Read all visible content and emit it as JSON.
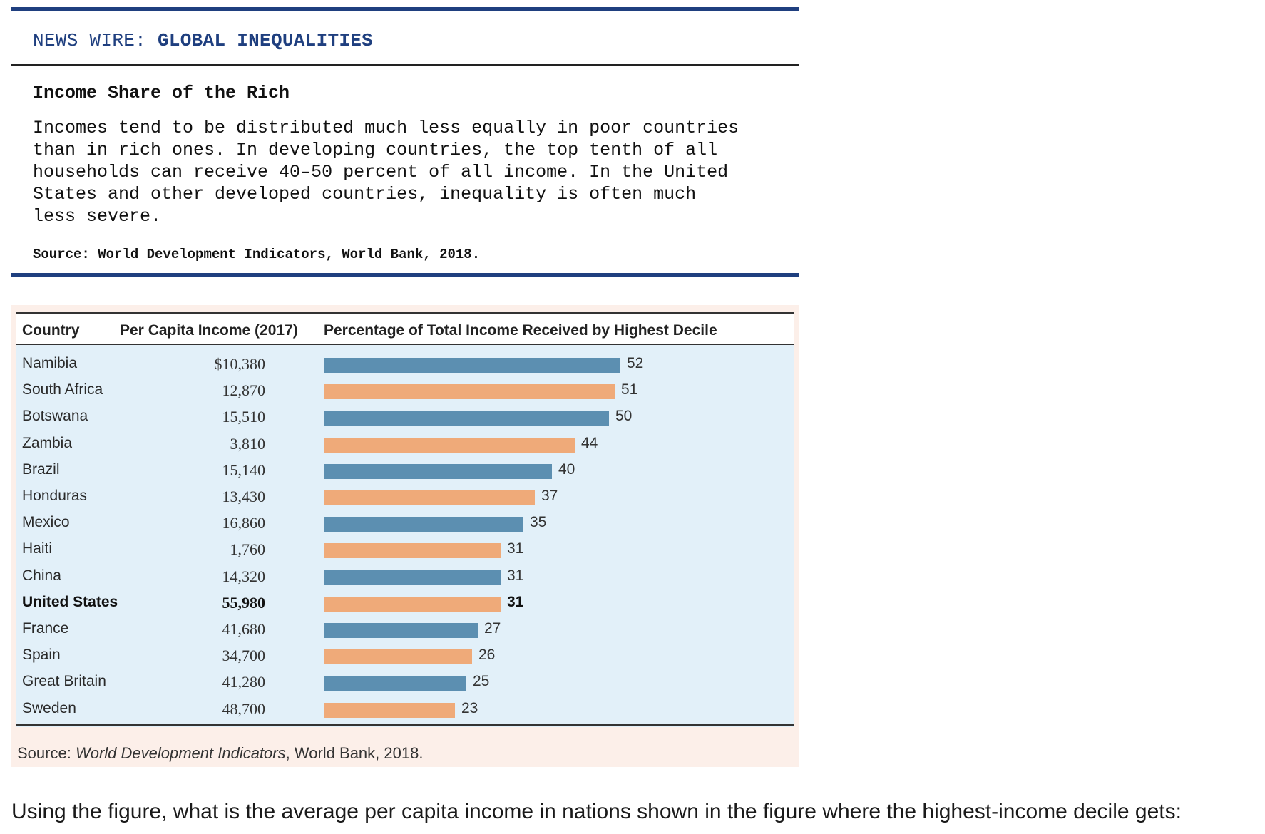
{
  "newswire": {
    "header_prefix": "NEWS WIRE:",
    "header_topic": "GLOBAL INEQUALITIES",
    "subtitle": "Income Share of the Rich",
    "body_lines": [
      "Incomes tend to be distributed much less equally in poor countries",
      "than in rich ones. In developing countries, the top tenth of all",
      "households can receive 40–50 percent of all income. In the United",
      "States and other developed countries, inequality is often much",
      "less severe."
    ],
    "source": "Source: World Development Indicators, World Bank, 2018."
  },
  "figure": {
    "col_country": "Country",
    "col_income": "Per Capita Income (2017)",
    "col_pct": "Percentage of Total Income Received by Highest Decile",
    "source_prefix": "Source: ",
    "source_italic": "World Development Indicators",
    "source_suffix": ", World Bank, 2018."
  },
  "chart_data": {
    "type": "bar",
    "orientation": "horizontal",
    "categories": [
      "Namibia",
      "South Africa",
      "Botswana",
      "Zambia",
      "Brazil",
      "Honduras",
      "Mexico",
      "Haiti",
      "China",
      "United States",
      "France",
      "Spain",
      "Great Britain",
      "Sweden"
    ],
    "values": [
      52,
      51,
      50,
      44,
      40,
      37,
      35,
      31,
      31,
      31,
      27,
      26,
      25,
      23
    ],
    "per_capita_income": [
      "$10,380",
      "12,870",
      "15,510",
      "3,810",
      "15,140",
      "13,430",
      "16,860",
      "1,760",
      "14,320",
      "55,980",
      "41,680",
      "34,700",
      "41,280",
      "48,700"
    ],
    "highlighted_category": "United States",
    "bar_colors": [
      "#5c8fb1",
      "#efaa79"
    ],
    "xlim": [
      0,
      52
    ]
  },
  "question": {
    "text": "Using the figure, what is the average per capita income in nations shown in the figure where the highest-income decile gets:"
  }
}
